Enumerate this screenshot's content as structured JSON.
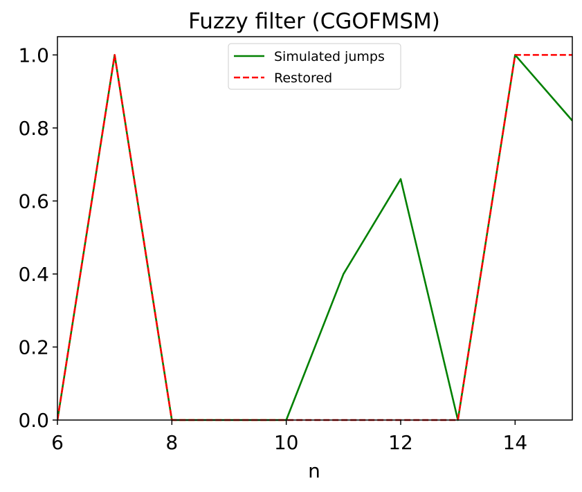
{
  "chart_data": {
    "type": "line",
    "title": "Fuzzy filter (CGOFMSM)",
    "xlabel": "n",
    "ylabel": "",
    "xlim": [
      6,
      15
    ],
    "ylim": [
      0,
      1.05
    ],
    "xticks": [
      6,
      8,
      10,
      12,
      14
    ],
    "xtick_labels": [
      "6",
      "8",
      "10",
      "12",
      "14"
    ],
    "yticks": [
      0,
      0.2,
      0.4,
      0.6,
      0.8,
      1.0
    ],
    "ytick_labels": [
      "0.0",
      "0.2",
      "0.4",
      "0.6",
      "0.8",
      "1.0"
    ],
    "grid": false,
    "legend_position": "upper-center",
    "series": [
      {
        "name": "Simulated jumps",
        "color": "#008000",
        "style": "solid",
        "x": [
          6,
          7,
          8,
          9,
          10,
          11,
          12,
          13,
          14,
          15
        ],
        "y": [
          0,
          1.0,
          0,
          0,
          0,
          0.4,
          0.66,
          0,
          1.0,
          0.82
        ]
      },
      {
        "name": "Restored",
        "color": "#ff0000",
        "style": "dashed",
        "x": [
          6,
          7,
          8,
          9,
          10,
          11,
          12,
          13,
          14,
          15
        ],
        "y": [
          0,
          1.0,
          0,
          0,
          0,
          0,
          0,
          0,
          1.0,
          1.0
        ]
      }
    ]
  }
}
